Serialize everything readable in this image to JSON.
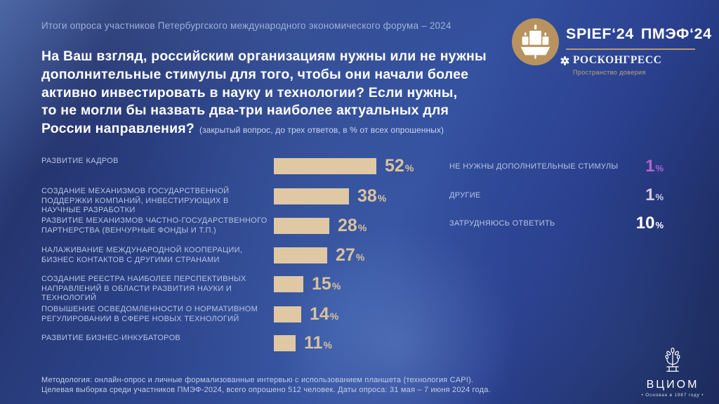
{
  "slide": {
    "header": "Итоги опроса участников Петербургского международного экономического форума – 2024",
    "question_lines": [
      "На Ваш взгляд, российским организациям нужны или не нужны",
      "дополнительные стимулы для того, чтобы они начали более",
      "активно инвестировать в науку и технологии? Если нужны,",
      "то не могли бы назвать два-три наиболее актуальных для",
      "России направления?"
    ],
    "question_note": "(закрытый вопрос, до трех ответов, в % от всех опрошенных)",
    "footer_lines": [
      "Методология: онлайн-опрос и личные формализованные интервью с использованием планшета (технология CAPI).",
      "Целевая выборка среди участников ПМЭФ-2024, всего опрошено 512 человек. Даты опроса: 31 мая – 7 июня 2024 года."
    ]
  },
  "branding": {
    "spief": "SPIEF‘24",
    "pmef": "ПМЭФ‘24",
    "roscongress": "РОСКОНГРЕСС",
    "roscongress_tagline": "Пространство доверия",
    "vciom": "ВЦИОМ",
    "vciom_tagline": "• Основан в 1987 году •"
  },
  "colors": {
    "bar": "#dfc8a3",
    "gold_accent": "#b59a6e",
    "label_blue": "#b7c4e2",
    "value_gold": "#d9c29c",
    "value_purple": "#b164d4",
    "value_lavender": "#d5cce4",
    "value_white": "#ffffff"
  },
  "chart_data": {
    "type": "bar",
    "orientation": "horizontal",
    "unit": "%",
    "title": "На Ваш взгляд, российским организациям нужны или не нужны дополнительные стимулы для того, чтобы они начали более активно инвестировать в науку и технологии? Если нужны, то не могли бы назвать два-три наиболее актуальных для России направления?",
    "categories": [
      "РАЗВИТИЕ КАДРОВ",
      "СОЗДАНИЕ МЕХАНИЗМОВ ГОСУДАРСТВЕННОЙ ПОДДЕРЖКИ КОМПАНИЙ, ИНВЕСТИРУЮЩИХ В НАУЧНЫЕ РАЗРАБОТКИ",
      "РАЗВИТИЕ МЕХАНИЗМОВ ЧАСТНО-ГОСУДАРСТВЕННОГО ПАРТНЕРСТВА (ВЕНЧУРНЫЕ ФОНДЫ И Т.П.)",
      "НАЛАЖИВАНИЕ МЕЖДУНАРОДНОЙ КООПЕРАЦИИ, БИЗНЕС КОНТАКТОВ С ДРУГИМИ СТРАНАМИ",
      "СОЗДАНИЕ РЕЕСТРА НАИБОЛЕЕ ПЕРСПЕКТИВНЫХ НАПРАВЛЕНИЙ В ОБЛАСТИ РАЗВИТИЯ НАУКИ И ТЕХНОЛОГИЙ",
      "ПОВЫШЕНИЕ ОСВЕДОМЛЕННОСТИ О НОРМАТИВНОМ РЕГУЛИРОВАНИИ В СФЕРЕ НОВЫХ ТЕХНОЛОГИЙ",
      "РАЗВИТИЕ БИЗНЕС-ИНКУБАТОРОВ"
    ],
    "values": [
      52,
      38,
      28,
      27,
      15,
      14,
      11
    ],
    "xlim": [
      0,
      60
    ],
    "grid": false,
    "legend": false,
    "extra_items": [
      {
        "label": "НЕ НУЖНЫ ДОПОЛНИТЕЛЬНЫЕ СТИМУЛЫ",
        "value": 1,
        "value_color": "#b164d4"
      },
      {
        "label": "ДРУГИЕ",
        "value": 1,
        "value_color": "#d5cce4"
      },
      {
        "label": "ЗАТРУДНЯЮСЬ ОТВЕТИТЬ",
        "value": 10,
        "value_color": "#ffffff"
      }
    ]
  }
}
